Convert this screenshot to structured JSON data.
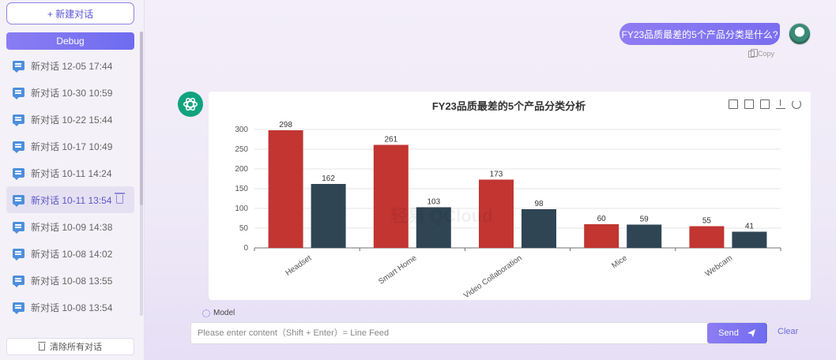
{
  "sidebar": {
    "new_chat_label": "+ 新建对话",
    "debug_label": "Debug",
    "conversations": [
      {
        "label": "新对话 12-05 17:44"
      },
      {
        "label": "新对话 10-30 10:59"
      },
      {
        "label": "新对话 10-22 15:44"
      },
      {
        "label": "新对话 10-17 10:49"
      },
      {
        "label": "新对话 10-11 14:24"
      },
      {
        "label": "新对话 10-11 13:54",
        "active": true
      },
      {
        "label": "新对话 10-09 14:38"
      },
      {
        "label": "新对话 10-08 14:02"
      },
      {
        "label": "新对话 10-08 13:55"
      },
      {
        "label": "新对话 10-08 13:54"
      }
    ],
    "clear_all_label": "清除所有对话"
  },
  "chat": {
    "user_message": "FY23品质最差的5个产品分类是什么?",
    "copy_label": "Copy"
  },
  "chart_data": {
    "type": "bar",
    "title": "FY23品质最差的5个产品分类分析",
    "categories": [
      "Headset",
      "Smart Home",
      "Video Collaboration",
      "Mice",
      "Webcam"
    ],
    "series": [
      {
        "values": [
          298,
          261,
          173,
          60,
          55
        ],
        "color": "#c23531"
      },
      {
        "values": [
          162,
          103,
          98,
          59,
          41
        ],
        "color": "#2f4554"
      }
    ],
    "y_ticks": [
      0,
      50,
      100,
      150,
      200,
      250,
      300
    ],
    "ylim": [
      0,
      300
    ],
    "grid": "horizontal"
  },
  "watermark": "轻易 QCloud",
  "input": {
    "model_label": "Model",
    "placeholder": "Please enter content（Shift + Enter）= Line Feed",
    "send_label": "Send",
    "clear_label": "Clear"
  },
  "colors": {
    "accent": "#7a6ef0",
    "bot": "#10a37f"
  }
}
